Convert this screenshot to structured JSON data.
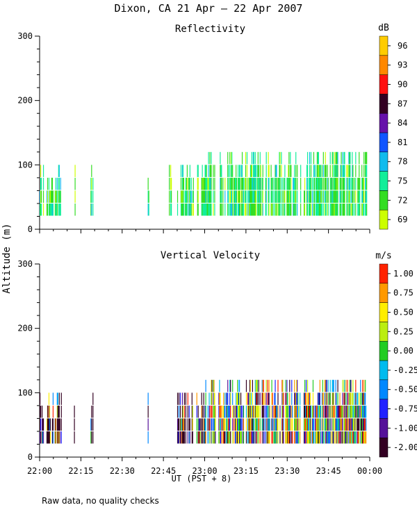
{
  "chart_data": [
    {
      "type": "heatmap",
      "figure_title": "Dixon, CA 21 Apr — 22 Apr 2007",
      "title": "Reflectivity",
      "ylabel": "Altitude (m)",
      "xlabel": "UT  (PST + 8)",
      "x_ticks": [
        "22:00",
        "22:15",
        "22:30",
        "22:45",
        "23:00",
        "23:15",
        "23:30",
        "23:45",
        "00:00"
      ],
      "x_range_minutes": [
        0,
        120
      ],
      "y_ticks": [
        0,
        100,
        200,
        300
      ],
      "ylim": [
        0,
        300
      ],
      "colorbar": {
        "unit": "dB",
        "labels": [
          "69",
          "72",
          "75",
          "78",
          "81",
          "84",
          "87",
          "90",
          "93",
          "96"
        ],
        "colors": [
          "#ccff00",
          "#33dd22",
          "#11ee99",
          "#11bbee",
          "#1155ff",
          "#6611aa",
          "#330022",
          "#ff1111",
          "#ff8800",
          "#ffcc00"
        ]
      },
      "data": {
        "altitude_bins_m": [
          40,
          60,
          80,
          100,
          120
        ],
        "echo_intervals_minutes": [
          [
            0,
            1.5
          ],
          [
            2.5,
            5
          ],
          [
            5.5,
            8
          ],
          [
            12.5,
            13
          ],
          [
            18.5,
            19.5
          ],
          [
            39.3,
            39.8
          ],
          [
            47,
            48
          ],
          [
            50,
            56
          ],
          [
            57,
            64
          ],
          [
            65,
            95
          ],
          [
            96,
            119
          ]
        ],
        "max_altitude_m": 120,
        "dominant_dB": [
          72,
          75
        ]
      }
    },
    {
      "type": "heatmap",
      "title": "Vertical Velocity",
      "ylabel": "Altitude (m)",
      "xlabel": "UT  (PST + 8)",
      "x_ticks": [
        "22:00",
        "22:15",
        "22:30",
        "22:45",
        "23:00",
        "23:15",
        "23:30",
        "23:45",
        "00:00"
      ],
      "x_range_minutes": [
        0,
        120
      ],
      "y_ticks": [
        0,
        100,
        200,
        300
      ],
      "ylim": [
        0,
        300
      ],
      "colorbar": {
        "unit": "m/s",
        "labels": [
          "-2.00",
          "-1.00",
          "-0.75",
          "-0.50",
          "-0.25",
          "0.00",
          "0.25",
          "0.50",
          "0.75",
          "1.00"
        ],
        "colors": [
          "#330022",
          "#551199",
          "#2222ff",
          "#0088ff",
          "#00bbee",
          "#22cc22",
          "#bbee11",
          "#ffee00",
          "#ff9900",
          "#ff2200"
        ]
      },
      "data": {
        "altitude_bins_m": [
          40,
          60,
          80,
          100,
          120
        ],
        "echo_intervals_minutes": [
          [
            0,
            1.5
          ],
          [
            2.5,
            5
          ],
          [
            5.5,
            8
          ],
          [
            12.5,
            13
          ],
          [
            18.5,
            19.5
          ],
          [
            39.3,
            39.8
          ],
          [
            47,
            48
          ],
          [
            50,
            56
          ],
          [
            57,
            64
          ],
          [
            65,
            95
          ],
          [
            96,
            119
          ]
        ],
        "max_altitude_m": 120,
        "velocity_range_m_s": [
          -2.0,
          1.0
        ]
      }
    }
  ],
  "footnote": "Raw data, no quality checks"
}
